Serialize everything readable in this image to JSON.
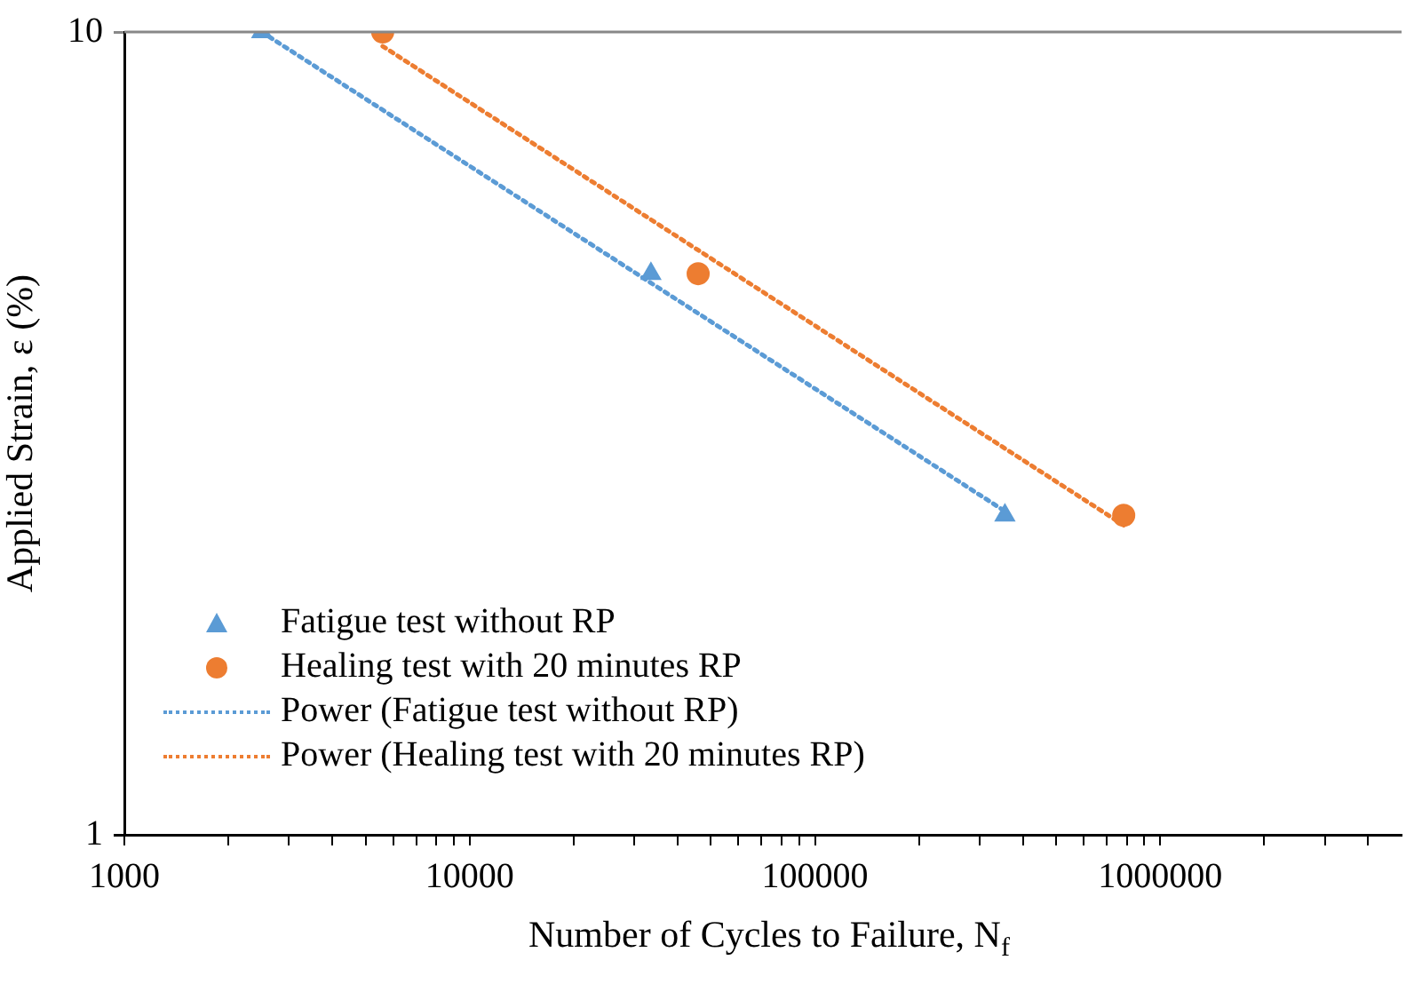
{
  "chart_data": {
    "type": "scatter",
    "xlabel": "Number of Cycles to Failure, N$_{f}$",
    "ylabel": "Applied Strain, ε (%)",
    "log": "xy",
    "xlim": [
      1000,
      5000000
    ],
    "ylim": [
      1,
      10
    ],
    "xticks": [
      1000,
      {
        "value": 2000,
        "label": null
      },
      {
        "value": 3000,
        "label": null
      },
      {
        "value": 4000,
        "label": null
      },
      {
        "value": 5000,
        "label": null
      },
      {
        "value": 6000,
        "label": null
      },
      {
        "value": 7000,
        "label": null
      },
      {
        "value": 8000,
        "label": null
      },
      {
        "value": 9000,
        "label": null
      },
      10000,
      {
        "value": 20000,
        "label": null
      },
      {
        "value": 30000,
        "label": null
      },
      {
        "value": 40000,
        "label": null
      },
      {
        "value": 50000,
        "label": null
      },
      {
        "value": 60000,
        "label": null
      },
      {
        "value": 70000,
        "label": null
      },
      {
        "value": 80000,
        "label": null
      },
      {
        "value": 90000,
        "label": null
      },
      100000,
      {
        "value": 200000,
        "label": null
      },
      {
        "value": 300000,
        "label": null
      },
      {
        "value": 400000,
        "label": null
      },
      {
        "value": 500000,
        "label": null
      },
      {
        "value": 600000,
        "label": null
      },
      {
        "value": 700000,
        "label": null
      },
      {
        "value": 800000,
        "label": null
      },
      {
        "value": 900000,
        "label": null
      },
      1000000,
      {
        "value": 2000000,
        "label": null
      },
      {
        "value": 3000000,
        "label": null
      },
      {
        "value": 4000000,
        "label": null
      }
    ],
    "yticks": [
      1,
      10
    ],
    "legend": "bottom left",
    "series": [
      {
        "name": "Fatigue test without RP",
        "type": "scatter",
        "marker": "triangle",
        "color": "#5b9bd5",
        "x": [
          2500,
          33500,
          355000
        ],
        "values": [
          10,
          5,
          2.5
        ]
      },
      {
        "name": "Healing test with 20 minutes RP",
        "type": "scatter",
        "marker": "circle",
        "color": "#ed7d31",
        "x": [
          5600,
          45900,
          784000
        ],
        "values": [
          10,
          5,
          2.5
        ]
      },
      {
        "name": "Power (Fatigue test without RP)",
        "type": "line",
        "marker": "none",
        "line_style": "dotted",
        "color": "#5b9bd5",
        "x": [
          2500,
          355000
        ],
        "values": [
          10,
          2.53
        ]
      },
      {
        "name": "Power (Healing test with 20 minutes RP)",
        "type": "line",
        "marker": "none",
        "line_style": "dotted",
        "color": "#ed7d31",
        "x": [
          5600,
          784000
        ],
        "values": [
          9.6,
          2.43
        ]
      }
    ]
  }
}
